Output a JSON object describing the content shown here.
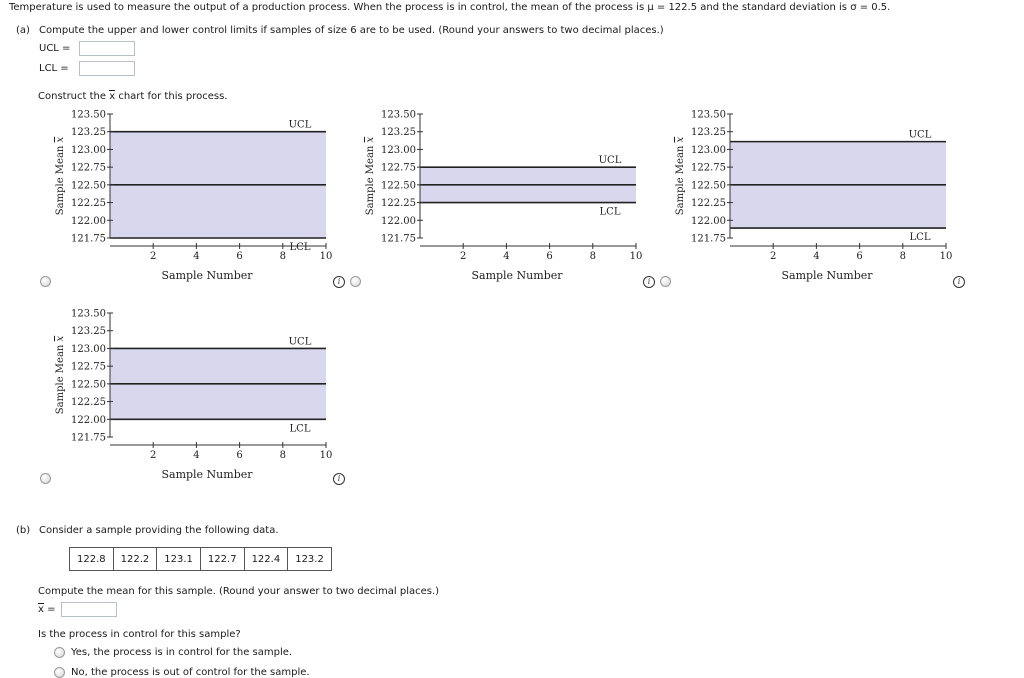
{
  "intro": {
    "text": "Temperature is used to measure the output of a production process. When the process is in control, the mean of the process is μ = 122.5 and the standard deviation is σ = 0.5."
  },
  "part_a": {
    "label": "(a)",
    "question": "Compute the upper and lower control limits if samples of size 6 are to be used. (Round your answers to two decimal places.)",
    "ucl_label": "UCL =",
    "lcl_label": "LCL =",
    "ucl_value": "",
    "lcl_value": "",
    "construct_prefix": "Construct the",
    "construct_xbar": "x",
    "construct_suffix": "chart for this process."
  },
  "chart_data": [
    {
      "type": "line",
      "option": 1,
      "ylabel_text": "Sample Mean ",
      "ylabel_xbar": "x",
      "xlabel": "Sample Number",
      "x_ticks": [
        2,
        4,
        6,
        8,
        10
      ],
      "y_ticks": [
        "123.50",
        "123.25",
        "123.00",
        "122.75",
        "122.50",
        "122.25",
        "122.00",
        "121.75"
      ],
      "ylim": [
        121.75,
        123.5
      ],
      "xlim": [
        0,
        10
      ],
      "ucl": 123.25,
      "center": 122.5,
      "lcl": 121.75,
      "ucl_label": "UCL",
      "lcl_label": "LCL"
    },
    {
      "type": "line",
      "option": 2,
      "ylabel_text": "Sample Mean ",
      "ylabel_xbar": "x",
      "xlabel": "Sample Number",
      "x_ticks": [
        2,
        4,
        6,
        8,
        10
      ],
      "y_ticks": [
        "123.50",
        "123.25",
        "123.00",
        "122.75",
        "122.50",
        "122.25",
        "122.00",
        "121.75"
      ],
      "ylim": [
        121.75,
        123.5
      ],
      "xlim": [
        0,
        10
      ],
      "ucl": 122.75,
      "center": 122.5,
      "lcl": 122.25,
      "ucl_label": "UCL",
      "lcl_label": "LCL"
    },
    {
      "type": "line",
      "option": 3,
      "ylabel_text": "Sample Mean ",
      "ylabel_xbar": "x",
      "xlabel": "Sample Number",
      "x_ticks": [
        2,
        4,
        6,
        8,
        10
      ],
      "y_ticks": [
        "123.50",
        "123.25",
        "123.00",
        "122.75",
        "122.50",
        "122.25",
        "122.00",
        "121.75"
      ],
      "ylim": [
        121.75,
        123.5
      ],
      "xlim": [
        0,
        10
      ],
      "ucl": 123.11,
      "center": 122.5,
      "lcl": 121.89,
      "ucl_label": "UCL",
      "lcl_label": "LCL"
    },
    {
      "type": "line",
      "option": 4,
      "ylabel_text": "Sample Mean ",
      "ylabel_xbar": "x",
      "xlabel": "Sample Number",
      "x_ticks": [
        2,
        4,
        6,
        8,
        10
      ],
      "y_ticks": [
        "123.50",
        "123.25",
        "123.00",
        "122.75",
        "122.50",
        "122.25",
        "122.00",
        "121.75"
      ],
      "ylim": [
        121.75,
        123.5
      ],
      "xlim": [
        0,
        10
      ],
      "ucl": 123.0,
      "center": 122.5,
      "lcl": 122.0,
      "ucl_label": "UCL",
      "lcl_label": "LCL"
    }
  ],
  "part_b": {
    "label": "(b)",
    "question": "Consider a sample providing the following data.",
    "sample_values": [
      "122.8",
      "122.2",
      "123.1",
      "122.7",
      "122.4",
      "123.2"
    ],
    "mean_question": "Compute the mean for this sample. (Round your answer to two decimal places.)",
    "xbar_symbol": "x",
    "xbar_equals": "=",
    "mean_value": "",
    "control_question": "Is the process in control for this sample?",
    "options": [
      "Yes, the process is in control for the sample.",
      "No, the process is out of control for the sample."
    ]
  },
  "icons": {
    "info": "i"
  },
  "colors": {
    "band_fill": "#d9d7ee",
    "line": "#222222",
    "axis": "#333333"
  }
}
